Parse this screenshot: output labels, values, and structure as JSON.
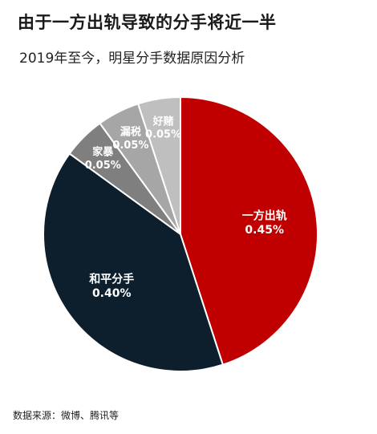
{
  "header": {
    "title": "由于一方出轨导致的分手将近一半",
    "subtitle": "2019年至今，明星分手数据原因分析"
  },
  "footer": {
    "source": "数据来源：微博、腾讯等"
  },
  "chart_data": {
    "type": "pie",
    "title": "由于一方出轨导致的分手将近一半",
    "subtitle": "2019年至今，明星分手数据原因分析",
    "start_angle_deg": 0,
    "direction": "clockwise",
    "slices": [
      {
        "label": "一方出轨",
        "value": 0.45,
        "value_label": "0.45%",
        "color": "#c00000"
      },
      {
        "label": "和平分手",
        "value": 0.4,
        "value_label": "0.40%",
        "color": "#0d1f2d"
      },
      {
        "label": "家暴",
        "value": 0.05,
        "value_label": "0.05%",
        "color": "#7f7f7f"
      },
      {
        "label": "漏税",
        "value": 0.05,
        "value_label": "0.05%",
        "color": "#a6a6a6"
      },
      {
        "label": "好赌",
        "value": 0.05,
        "value_label": "0.05%",
        "color": "#bfbfbf"
      }
    ]
  }
}
